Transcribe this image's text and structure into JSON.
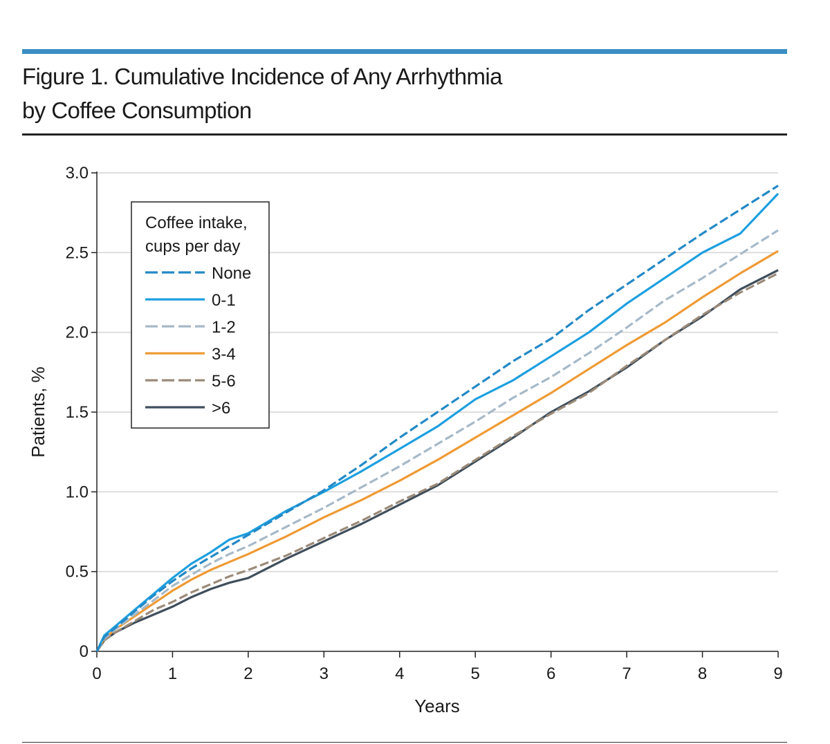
{
  "header": {
    "title_line1": "Figure 1. Cumulative Incidence of Any Arrhythmia",
    "title_line2": "by Coffee Consumption",
    "accent_color": "#3a8fc4"
  },
  "chart_data": {
    "type": "line",
    "xlabel": "Years",
    "ylabel": "Patients, %",
    "xlim": [
      0,
      9
    ],
    "ylim": [
      0,
      3.0
    ],
    "x_ticks": [
      0,
      1,
      2,
      3,
      4,
      5,
      6,
      7,
      8,
      9
    ],
    "x_tick_labels": [
      "0",
      "1",
      "2",
      "3",
      "4",
      "5",
      "6",
      "7",
      "8",
      "9"
    ],
    "y_ticks": [
      0,
      0.5,
      1.0,
      1.5,
      2.0,
      2.5,
      3.0
    ],
    "y_tick_labels": [
      "0",
      "0.5",
      "1.0",
      "1.5",
      "2.0",
      "2.5",
      "3.0"
    ],
    "grid": "horizontal",
    "legend": {
      "title_line1": "Coffee intake,",
      "title_line2": "cups per day",
      "placement": "top-left"
    },
    "series": [
      {
        "name": "None",
        "color": "#2389c6",
        "dash": "dashed",
        "x": [
          0,
          0.1,
          0.25,
          0.5,
          0.75,
          1,
          1.25,
          1.5,
          1.75,
          2,
          2.5,
          3,
          3.5,
          4,
          4.5,
          5,
          5.5,
          6,
          6.5,
          7,
          7.5,
          8,
          8.5,
          9
        ],
        "y": [
          0,
          0.09,
          0.15,
          0.25,
          0.35,
          0.44,
          0.52,
          0.59,
          0.66,
          0.73,
          0.87,
          1.01,
          1.17,
          1.34,
          1.5,
          1.66,
          1.82,
          1.96,
          2.14,
          2.3,
          2.46,
          2.62,
          2.77,
          2.92
        ]
      },
      {
        "name": "0-1",
        "color": "#1d9fe0",
        "dash": "solid",
        "x": [
          0,
          0.1,
          0.25,
          0.5,
          0.75,
          1,
          1.25,
          1.5,
          1.75,
          2,
          2.5,
          3,
          3.5,
          4,
          4.5,
          5,
          5.5,
          6,
          6.5,
          7,
          7.5,
          8,
          8.5,
          9
        ],
        "y": [
          0,
          0.1,
          0.16,
          0.26,
          0.36,
          0.46,
          0.55,
          0.62,
          0.7,
          0.74,
          0.88,
          1.0,
          1.13,
          1.27,
          1.41,
          1.58,
          1.7,
          1.85,
          2.0,
          2.18,
          2.34,
          2.5,
          2.62,
          2.87
        ]
      },
      {
        "name": "1-2",
        "color": "#a6b9c8",
        "dash": "dashed",
        "x": [
          0,
          0.1,
          0.25,
          0.5,
          0.75,
          1,
          1.25,
          1.5,
          1.75,
          2,
          2.5,
          3,
          3.5,
          4,
          4.5,
          5,
          5.5,
          6,
          6.5,
          7,
          7.5,
          8,
          8.5,
          9
        ],
        "y": [
          0,
          0.08,
          0.14,
          0.23,
          0.32,
          0.41,
          0.48,
          0.55,
          0.61,
          0.66,
          0.78,
          0.9,
          1.03,
          1.16,
          1.3,
          1.44,
          1.59,
          1.72,
          1.87,
          2.03,
          2.2,
          2.34,
          2.49,
          2.64
        ]
      },
      {
        "name": "3-4",
        "color": "#ef9a34",
        "dash": "solid",
        "x": [
          0,
          0.1,
          0.25,
          0.5,
          0.75,
          1,
          1.25,
          1.5,
          1.75,
          2,
          2.5,
          3,
          3.5,
          4,
          4.5,
          5,
          5.5,
          6,
          6.5,
          7,
          7.5,
          8,
          8.5,
          9
        ],
        "y": [
          0,
          0.08,
          0.14,
          0.22,
          0.3,
          0.38,
          0.45,
          0.51,
          0.56,
          0.61,
          0.72,
          0.84,
          0.95,
          1.07,
          1.2,
          1.34,
          1.48,
          1.62,
          1.77,
          1.92,
          2.06,
          2.22,
          2.37,
          2.51
        ]
      },
      {
        "name": "5-6",
        "color": "#9a8a78",
        "dash": "dashed",
        "x": [
          0,
          0.1,
          0.25,
          0.5,
          0.75,
          1,
          1.25,
          1.5,
          1.75,
          2,
          2.5,
          3,
          3.5,
          4,
          4.5,
          5,
          5.5,
          6,
          6.5,
          7,
          7.5,
          8,
          8.5,
          9
        ],
        "y": [
          0,
          0.07,
          0.12,
          0.19,
          0.26,
          0.31,
          0.37,
          0.42,
          0.47,
          0.51,
          0.6,
          0.71,
          0.82,
          0.94,
          1.05,
          1.2,
          1.35,
          1.49,
          1.62,
          1.79,
          1.95,
          2.11,
          2.25,
          2.37
        ]
      },
      {
        "name": ">6",
        "color": "#3f4e5b",
        "dash": "solid",
        "x": [
          0,
          0.1,
          0.25,
          0.5,
          0.75,
          1,
          1.25,
          1.5,
          1.75,
          2,
          2.5,
          3,
          3.5,
          4,
          4.5,
          5,
          5.5,
          6,
          6.5,
          7,
          7.5,
          8,
          8.5,
          9
        ],
        "y": [
          0,
          0.07,
          0.12,
          0.18,
          0.23,
          0.28,
          0.34,
          0.39,
          0.43,
          0.46,
          0.58,
          0.69,
          0.8,
          0.92,
          1.04,
          1.19,
          1.34,
          1.5,
          1.63,
          1.78,
          1.95,
          2.1,
          2.27,
          2.39
        ]
      }
    ]
  }
}
